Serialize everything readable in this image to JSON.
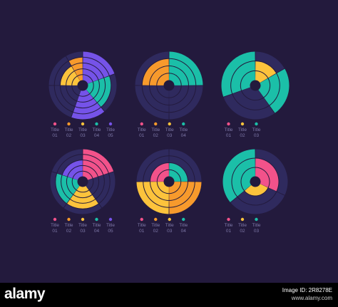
{
  "colors": {
    "background": "#231a3d",
    "track": "#2f2a5e",
    "divider": "#231a3d",
    "label": "#7e78a8"
  },
  "palette": {
    "pink": "#f2528a",
    "orange": "#f79a2c",
    "yellow": "#fcc33c",
    "teal": "#1bbfa8",
    "purple": "#7553e8"
  },
  "charts": [
    {
      "legend": [
        {
          "title": "Title",
          "num": "01",
          "color": "pink"
        },
        {
          "title": "Title",
          "num": "02",
          "color": "orange"
        },
        {
          "title": "Title",
          "num": "03",
          "color": "yellow"
        },
        {
          "title": "Title",
          "num": "04",
          "color": "teal"
        },
        {
          "title": "Title",
          "num": "05",
          "color": "purple"
        }
      ]
    },
    {
      "legend": [
        {
          "title": "Title",
          "num": "01",
          "color": "pink"
        },
        {
          "title": "Title",
          "num": "02",
          "color": "orange"
        },
        {
          "title": "Title",
          "num": "03",
          "color": "yellow"
        },
        {
          "title": "Title",
          "num": "04",
          "color": "teal"
        }
      ]
    },
    {
      "legend": [
        {
          "title": "Title",
          "num": "01",
          "color": "pink"
        },
        {
          "title": "Title",
          "num": "02",
          "color": "yellow"
        },
        {
          "title": "Title",
          "num": "03",
          "color": "teal"
        }
      ]
    },
    {
      "legend": [
        {
          "title": "Title",
          "num": "01",
          "color": "pink"
        },
        {
          "title": "Title",
          "num": "02",
          "color": "orange"
        },
        {
          "title": "Title",
          "num": "03",
          "color": "yellow"
        },
        {
          "title": "Title",
          "num": "04",
          "color": "teal"
        },
        {
          "title": "Title",
          "num": "05",
          "color": "purple"
        }
      ]
    },
    {
      "legend": [
        {
          "title": "Title",
          "num": "01",
          "color": "pink"
        },
        {
          "title": "Title",
          "num": "02",
          "color": "orange"
        },
        {
          "title": "Title",
          "num": "03",
          "color": "yellow"
        },
        {
          "title": "Title",
          "num": "04",
          "color": "teal"
        }
      ]
    },
    {
      "legend": [
        {
          "title": "Title",
          "num": "01",
          "color": "pink"
        },
        {
          "title": "Title",
          "num": "02",
          "color": "yellow"
        },
        {
          "title": "Title",
          "num": "03",
          "color": "teal"
        }
      ]
    }
  ],
  "chart_data": [
    {
      "type": "radial-bar",
      "rings": 5,
      "sectors": [
        {
          "from_deg": 0,
          "to_deg": 70,
          "color": "purple",
          "rings": 5
        },
        {
          "from_deg": 70,
          "to_deg": 140,
          "color": "teal",
          "rings": 4
        },
        {
          "from_deg": 140,
          "to_deg": 200,
          "color": "purple",
          "rings": 5
        },
        {
          "from_deg": 200,
          "to_deg": 270,
          "color": "track",
          "rings": 5
        },
        {
          "from_deg": 270,
          "to_deg": 330,
          "color": "yellow",
          "rings": 3
        },
        {
          "from_deg": 330,
          "to_deg": 360,
          "color": "orange",
          "rings": 4
        }
      ],
      "legend": [
        "Title 01",
        "Title 02",
        "Title 03",
        "Title 04",
        "Title 05"
      ]
    },
    {
      "type": "radial-bar",
      "rings": 4,
      "sectors": [
        {
          "from_deg": 0,
          "to_deg": 90,
          "color": "teal",
          "rings": 4
        },
        {
          "from_deg": 90,
          "to_deg": 180,
          "color": "track",
          "rings": 4
        },
        {
          "from_deg": 180,
          "to_deg": 270,
          "color": "track",
          "rings": 4
        },
        {
          "from_deg": 270,
          "to_deg": 360,
          "color": "orange",
          "rings": 3
        }
      ],
      "legend": [
        "Title 01",
        "Title 02",
        "Title 03",
        "Title 04"
      ]
    },
    {
      "type": "radial-bar",
      "rings": 3,
      "sectors": [
        {
          "from_deg": 0,
          "to_deg": 60,
          "color": "yellow",
          "rings": 2
        },
        {
          "from_deg": 60,
          "to_deg": 145,
          "color": "teal",
          "rings": 3
        },
        {
          "from_deg": 145,
          "to_deg": 250,
          "color": "track",
          "rings": 3
        },
        {
          "from_deg": 250,
          "to_deg": 360,
          "color": "teal",
          "rings": 3
        }
      ],
      "legend": [
        "Title 01",
        "Title 02",
        "Title 03"
      ]
    },
    {
      "type": "radial-bar",
      "rings": 5,
      "sectors": [
        {
          "from_deg": 0,
          "to_deg": 72,
          "color": "pink",
          "rings": 5
        },
        {
          "from_deg": 72,
          "to_deg": 144,
          "color": "track",
          "rings": 5
        },
        {
          "from_deg": 144,
          "to_deg": 216,
          "color": "yellow",
          "rings": 4
        },
        {
          "from_deg": 216,
          "to_deg": 288,
          "color": "teal",
          "rings": 4
        },
        {
          "from_deg": 288,
          "to_deg": 360,
          "color": "purple",
          "rings": 3
        }
      ],
      "legend": [
        "Title 01",
        "Title 02",
        "Title 03",
        "Title 04",
        "Title 05"
      ]
    },
    {
      "type": "radial-bar",
      "rings": 4,
      "sectors": [
        {
          "from_deg": 0,
          "to_deg": 90,
          "color": "teal",
          "rings": 2
        },
        {
          "from_deg": 90,
          "to_deg": 180,
          "color": "orange",
          "rings": 4
        },
        {
          "from_deg": 180,
          "to_deg": 270,
          "color": "yellow",
          "rings": 4
        },
        {
          "from_deg": 270,
          "to_deg": 360,
          "color": "pink",
          "rings": 2
        }
      ],
      "legend": [
        "Title 01",
        "Title 02",
        "Title 03",
        "Title 04"
      ]
    },
    {
      "type": "radial-bar",
      "rings": 3,
      "sectors": [
        {
          "from_deg": 0,
          "to_deg": 115,
          "color": "pink",
          "rings": 2
        },
        {
          "from_deg": 115,
          "to_deg": 230,
          "color": "yellow",
          "rings": 1
        },
        {
          "from_deg": 230,
          "to_deg": 360,
          "color": "teal",
          "rings": 3
        }
      ],
      "legend": [
        "Title 01",
        "Title 02",
        "Title 03"
      ]
    }
  ],
  "watermark": {
    "logo": "alamy",
    "image_id_label": "Image ID: 2R8278E",
    "site": "www.alamy.com"
  }
}
